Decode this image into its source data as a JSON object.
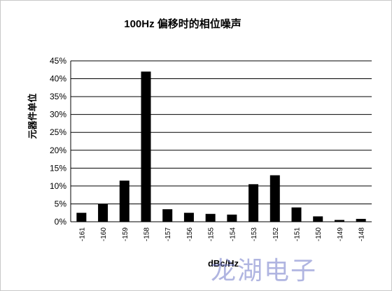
{
  "chart_data": {
    "type": "bar",
    "title": "100Hz 偏移时的相位噪声",
    "xlabel": "dBc/Hz",
    "ylabel": "元器件单位",
    "categories": [
      "-161",
      "-160",
      "-159",
      "-158",
      "-157",
      "-156",
      "-155",
      "-154",
      "-153",
      "-152",
      "-151",
      "-150",
      "-149",
      "-148"
    ],
    "values": [
      2.5,
      5,
      11.5,
      42,
      3.5,
      2.5,
      2.2,
      2,
      10.5,
      13,
      4,
      1.5,
      0.5,
      0.8
    ],
    "ylim": [
      0,
      45
    ],
    "yticks": [
      "0%",
      "5%",
      "10%",
      "15%",
      "20%",
      "25%",
      "30%",
      "35%",
      "40%",
      "45%"
    ],
    "grid": true
  },
  "watermark": "龙湖电子"
}
